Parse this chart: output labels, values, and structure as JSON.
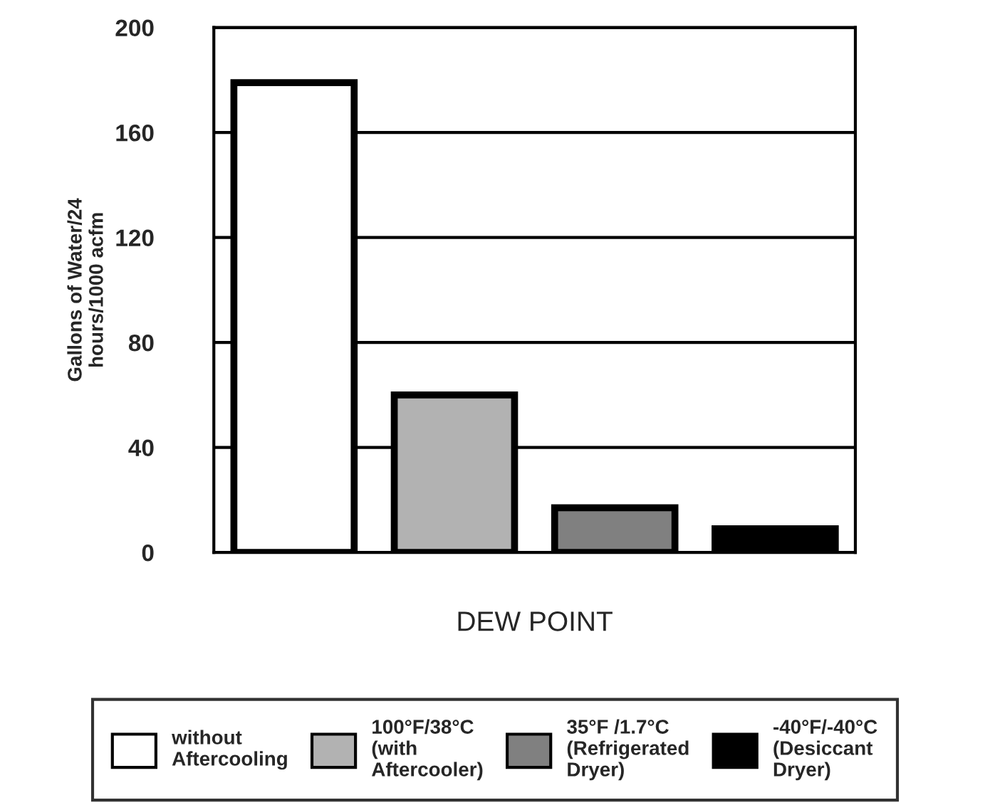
{
  "chart_data": {
    "type": "bar",
    "xlabel": "DEW POINT",
    "ylabel": "Gallons of Water/24\nhours/1000 acfm",
    "categories": [
      null,
      null,
      null,
      null
    ],
    "series": [
      {
        "name": "without\nAftercooling",
        "color": "#ffffff",
        "values": [
          179,
          null,
          null,
          null
        ]
      },
      {
        "name": "100°F/38°C\n(with\nAftercooler)",
        "color": "#b2b2b2",
        "values": [
          null,
          60,
          null,
          null
        ]
      },
      {
        "name": "35°F /1.7°C\n(Refrigerated\nDryer)",
        "color": "#808080",
        "values": [
          null,
          null,
          17,
          null
        ]
      },
      {
        "name": "-40°F/-40°C\n(Desiccant\nDryer)",
        "color": "#000000",
        "values": [
          null,
          null,
          null,
          9
        ]
      }
    ],
    "ylim": [
      0,
      200
    ],
    "yticks": [
      0,
      40,
      80,
      120,
      160,
      200
    ],
    "grid": "y",
    "legend": "bottom"
  }
}
